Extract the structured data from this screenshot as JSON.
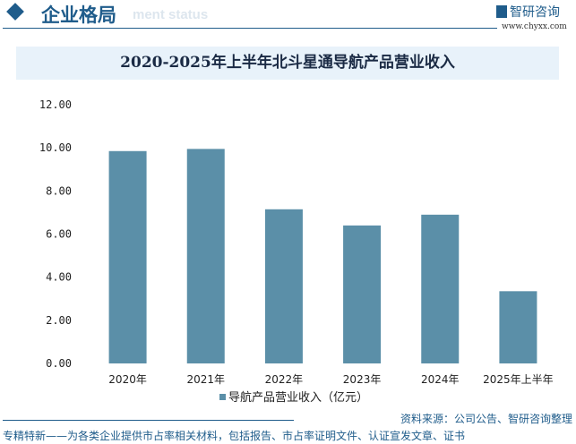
{
  "header": {
    "title": "企业格局",
    "subtitle": "ment status",
    "logo": "智研咨询",
    "url": "www.chyxx.com"
  },
  "chart_data": {
    "type": "bar",
    "title": "2020-2025年上半年北斗星通导航产品营业收入",
    "categories": [
      "2020年",
      "2021年",
      "2022年",
      "2023年",
      "2024年",
      "2025年上半年"
    ],
    "series": [
      {
        "name": "导航产品营业收入（亿元）",
        "values": [
          9.85,
          9.95,
          7.15,
          6.4,
          6.9,
          3.35
        ],
        "color": "#5b8fa8"
      }
    ],
    "yticks": [
      "0.00",
      "2.00",
      "4.00",
      "6.00",
      "8.00",
      "10.00",
      "12.00"
    ],
    "ylim": [
      0,
      12
    ],
    "grid": false,
    "legend": "bottom"
  },
  "source": "资料来源：公司公告、智研咨询整理",
  "footer": "专精特新——为各类企业提供市占率相关材料，包括报告、市占率证明文件、认证宣发文章、证书"
}
